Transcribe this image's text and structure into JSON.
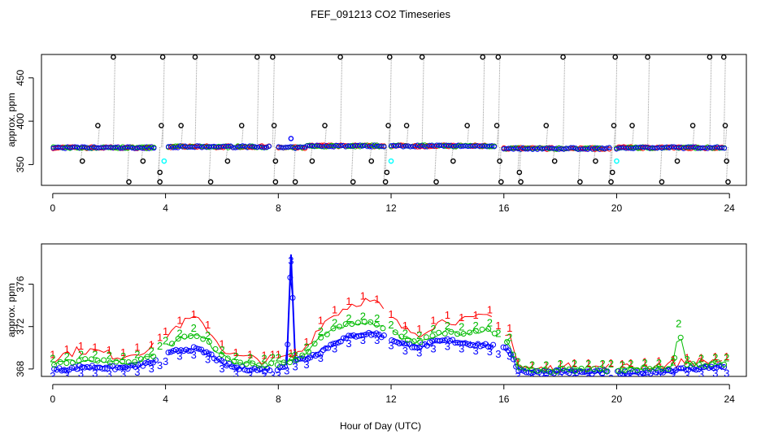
{
  "title": "FEF_091213  CO2 Timeseries",
  "xlabel": "Hour of Day (UTC)",
  "colors": {
    "series1": "#ff0000",
    "series2": "#00bb00",
    "series3": "#0000ff",
    "cyan": "#00ffff",
    "calib": "#000000",
    "trace": "#999999"
  },
  "chart_data": [
    {
      "type": "scatter",
      "panel": "top",
      "ylabel": "approx. ppm",
      "xlim": [
        -0.4,
        24.6
      ],
      "ylim": [
        326,
        477
      ],
      "xticks": [
        0,
        4,
        8,
        12,
        16,
        20,
        24
      ],
      "yticks": [
        350,
        400,
        450
      ],
      "series": [
        {
          "name": "baseline",
          "note": "continuous ~369-372 ppm band, all channels overplotted"
        },
        {
          "name": "calibration-high",
          "x": [
            2.15,
            3.9,
            5.05,
            7.25,
            7.8,
            10.2,
            11.95,
            13.1,
            15.25,
            15.8,
            18.1,
            19.95,
            21.1,
            23.3,
            23.8
          ],
          "y": [
            474,
            474,
            474,
            474,
            474,
            474,
            474,
            474,
            474,
            474,
            474,
            474,
            474,
            474,
            474
          ]
        },
        {
          "name": "calibration-mid",
          "x": [
            1.6,
            3.85,
            4.55,
            6.7,
            7.85,
            9.65,
            11.9,
            12.55,
            14.7,
            15.75,
            17.5,
            19.9,
            20.55,
            22.7,
            23.85
          ],
          "y": [
            395,
            395,
            395,
            395,
            395,
            395,
            395,
            395,
            395,
            395,
            395,
            395,
            395,
            395,
            395
          ]
        },
        {
          "name": "calibration-low",
          "x": [
            1.05,
            3.2,
            3.8,
            6.2,
            7.9,
            9.2,
            11.3,
            11.85,
            14.2,
            15.85,
            16.55,
            17.8,
            19.25,
            19.85,
            22.15,
            23.9
          ],
          "y": [
            354,
            354,
            341,
            354,
            354,
            354,
            354,
            341,
            354,
            354,
            341,
            354,
            354,
            341,
            354,
            354
          ]
        },
        {
          "name": "calibration-zero",
          "x": [
            2.7,
            3.8,
            5.6,
            7.9,
            8.6,
            10.65,
            11.8,
            13.6,
            15.9,
            16.6,
            18.7,
            19.8,
            21.6,
            23.95
          ],
          "y": [
            330,
            330,
            330,
            330,
            330,
            330,
            330,
            330,
            330,
            330,
            330,
            330,
            330,
            330
          ]
        },
        {
          "name": "cyan",
          "x": [
            3.95,
            12.0,
            20.0
          ],
          "y": [
            354,
            354,
            354
          ]
        },
        {
          "name": "ch3-spike",
          "x": [
            8.45
          ],
          "y": [
            380
          ]
        }
      ]
    },
    {
      "type": "line",
      "panel": "bottom",
      "ylabel": "approx. ppm",
      "xlim": [
        -0.4,
        24.6
      ],
      "ylim": [
        367.3,
        379.8
      ],
      "xticks": [
        0,
        4,
        8,
        12,
        16,
        20,
        24
      ],
      "yticks": [
        368,
        372,
        376
      ],
      "series": [
        {
          "name": "1",
          "color": "red",
          "x": [
            0,
            0.5,
            1,
            1.5,
            2,
            2.5,
            3,
            3.5,
            3.8,
            4,
            4.5,
            5,
            5.5,
            6,
            6.5,
            7,
            7.5,
            7.8,
            8,
            8.45,
            8.6,
            9,
            9.5,
            10,
            10.5,
            11,
            11.5,
            12,
            12.5,
            13,
            13.5,
            14,
            14.5,
            15,
            15.5,
            15.8,
            16.2,
            16.5,
            17,
            17.5,
            18,
            18.5,
            19,
            19.5,
            19.8,
            20.2,
            20.5,
            21,
            21.5,
            22,
            22.5,
            23,
            23.5,
            23.9
          ],
          "y": [
            368.8,
            369.3,
            369.6,
            369.5,
            369.2,
            369.0,
            369.5,
            369.7,
            370.4,
            371.0,
            372.0,
            372.6,
            371.6,
            369.8,
            369.0,
            368.8,
            368.7,
            368.8,
            368.8,
            368.9,
            369.0,
            370.0,
            372.0,
            373.0,
            373.8,
            374.3,
            374.0,
            372.6,
            371.5,
            371.2,
            372.0,
            372.5,
            372.3,
            372.5,
            373.0,
            371.5,
            371.3,
            368.1,
            367.8,
            367.8,
            367.9,
            368.0,
            368.0,
            367.9,
            368.0,
            367.9,
            368.0,
            368.1,
            368.2,
            368.3,
            368.5,
            368.5,
            368.6,
            368.6
          ]
        },
        {
          "name": "2",
          "color": "green",
          "x": [
            0,
            0.5,
            1,
            1.5,
            2,
            2.5,
            3,
            3.5,
            3.8,
            4,
            4.5,
            5,
            5.5,
            6,
            6.5,
            7,
            7.5,
            7.8,
            8,
            8.45,
            8.6,
            9,
            9.5,
            10,
            10.5,
            11,
            11.5,
            12,
            12.5,
            13,
            13.5,
            14,
            14.5,
            15,
            15.5,
            15.8,
            16.2,
            16.5,
            17,
            17.5,
            18,
            18.5,
            19,
            19.5,
            19.8,
            20.2,
            20.5,
            21,
            21.5,
            22,
            22.2,
            22.5,
            23,
            23.5,
            23.9
          ],
          "y": [
            368.4,
            368.6,
            368.8,
            368.8,
            368.7,
            368.6,
            368.8,
            369.1,
            369.6,
            370.1,
            370.8,
            371.3,
            370.6,
            369.2,
            368.6,
            368.5,
            368.4,
            368.5,
            368.5,
            368.6,
            368.7,
            369.5,
            371.0,
            371.8,
            372.2,
            372.4,
            372.2,
            371.6,
            370.8,
            370.6,
            371.2,
            371.5,
            371.4,
            371.5,
            371.8,
            370.8,
            370.4,
            368.1,
            367.8,
            367.8,
            367.9,
            367.9,
            367.9,
            367.9,
            367.9,
            367.8,
            367.9,
            368.0,
            368.0,
            368.1,
            371.7,
            368.3,
            368.4,
            368.5,
            368.5
          ]
        },
        {
          "name": "3",
          "color": "blue",
          "x": [
            0,
            0.5,
            1,
            1.5,
            2,
            2.5,
            3,
            3.5,
            3.8,
            4,
            4.5,
            5,
            5.5,
            6,
            6.5,
            7,
            7.5,
            7.8,
            8,
            8.3,
            8.45,
            8.6,
            9,
            9.5,
            10,
            10.5,
            11,
            11.5,
            12,
            12.5,
            13,
            13.5,
            14,
            14.5,
            15,
            15.5,
            15.8,
            16.2,
            16.5,
            17,
            17.5,
            18,
            18.5,
            19,
            19.5,
            19.8,
            20.2,
            20.5,
            21,
            21.5,
            22,
            22.5,
            23,
            23.5,
            23.9
          ],
          "y": [
            367.9,
            368.0,
            368.2,
            368.2,
            368.1,
            368.1,
            368.3,
            368.6,
            368.9,
            369.3,
            369.8,
            369.9,
            369.5,
            368.6,
            368.1,
            368.0,
            367.9,
            368.0,
            368.0,
            368.4,
            378.8,
            368.8,
            369.0,
            369.6,
            370.5,
            371.0,
            371.3,
            371.3,
            370.8,
            370.3,
            370.1,
            370.5,
            370.7,
            370.5,
            370.3,
            370.2,
            370.0,
            369.8,
            367.9,
            367.7,
            367.7,
            367.8,
            367.7,
            367.7,
            367.7,
            367.7,
            367.6,
            367.6,
            367.7,
            367.8,
            367.9,
            368.0,
            368.1,
            368.2,
            368.2
          ]
        }
      ]
    }
  ]
}
